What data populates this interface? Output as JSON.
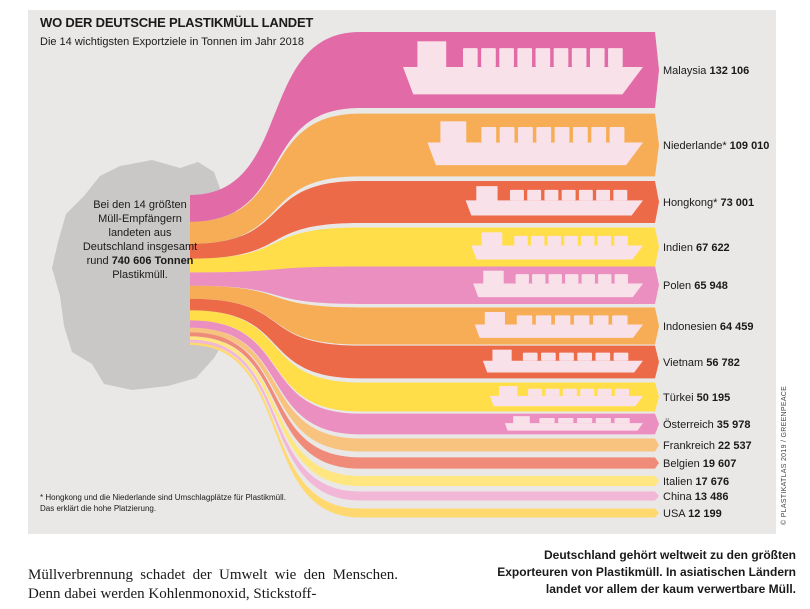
{
  "header": {
    "title": "WO DER DEUTSCHE PLASTIKMÜLL LANDET",
    "subtitle": "Die 14 wichtigsten Exportziele in Tonnen im Jahr 2018"
  },
  "map_note": {
    "line1": "Bei den 14 größten",
    "line2": "Müll-Empfängern",
    "line3": "landeten aus",
    "line4": "Deutschland insgesamt",
    "line5_prefix": "rund",
    "line5_value": "740 606 Tonnen",
    "line6": "Plastikmüll."
  },
  "footnote": {
    "line1": "* Hongkong und die Niederlande sind Umschlagplätze für Plastikmüll.",
    "line2": "Das erklärt die hohe Platzierung."
  },
  "credit": "© PLASTIKATLAS 2019 / GREENPEACE",
  "article_text": "Müllverbrennung schadet der Umwelt wie den Menschen. Denn dabei werden Kohlenmonoxid, Stickstoff-",
  "caption": "Deutschland gehört weltweit zu den größten Exporteuren von Plastikmüll. In asiatischen Ländern landet vor allem der kaum verwertbare Müll.",
  "colors": {
    "panel": "#e9e8e7",
    "map": "#c9c8c6",
    "ship": "#f9e1ea",
    "bands": [
      "#e26aa6",
      "#f7ad55",
      "#ec6a47",
      "#ffde4a",
      "#eb8fc1",
      "#f7ad55",
      "#ec6a47",
      "#ffde4a",
      "#eb8fc1",
      "#f8c27f",
      "#f08b7a",
      "#ffe680",
      "#f2b6d6",
      "#ffd970"
    ]
  },
  "chart_data": {
    "type": "sankey",
    "title": "WO DER DEUTSCHE PLASTIKMÜLL LANDET",
    "subtitle": "Die 14 wichtigsten Exportziele in Tonnen im Jahr 2018",
    "source": "Deutschland",
    "unit": "Tonnen",
    "total": "740 606",
    "flows": [
      {
        "target": "Malaysia",
        "value": 132106,
        "label": "132 106"
      },
      {
        "target": "Niederlande*",
        "value": 109010,
        "label": "109 010"
      },
      {
        "target": "Hongkong*",
        "value": 73001,
        "label": "73 001"
      },
      {
        "target": "Indien",
        "value": 67622,
        "label": "67 622"
      },
      {
        "target": "Polen",
        "value": 65948,
        "label": "65 948"
      },
      {
        "target": "Indonesien",
        "value": 64459,
        "label": "64 459"
      },
      {
        "target": "Vietnam",
        "value": 56782,
        "label": "56 782"
      },
      {
        "target": "Türkei",
        "value": 50195,
        "label": "50 195"
      },
      {
        "target": "Österreich",
        "value": 35978,
        "label": "35 978"
      },
      {
        "target": "Frankreich",
        "value": 22537,
        "label": "22 537"
      },
      {
        "target": "Belgien",
        "value": 19607,
        "label": "19 607"
      },
      {
        "target": "Italien",
        "value": 17676,
        "label": "17 676"
      },
      {
        "target": "China",
        "value": 13486,
        "label": "13 486"
      },
      {
        "target": "USA",
        "value": 12199,
        "label": "12 199"
      }
    ]
  }
}
